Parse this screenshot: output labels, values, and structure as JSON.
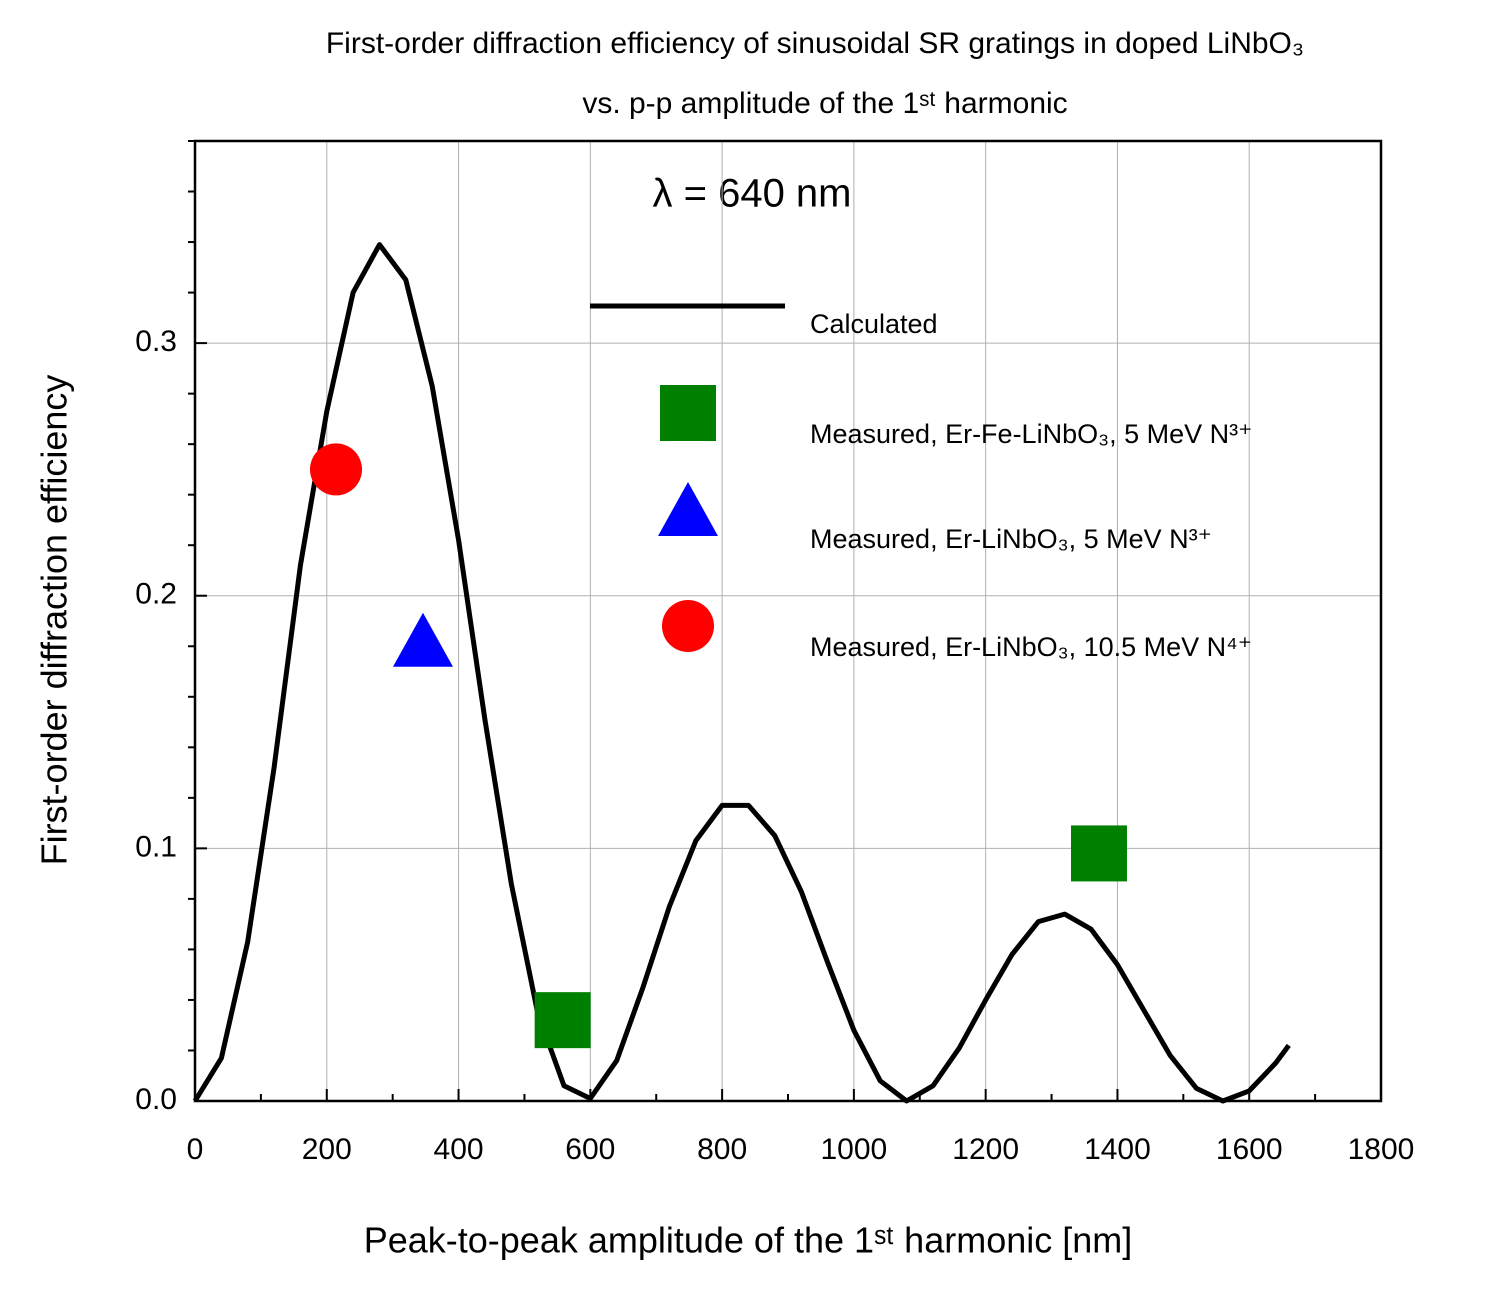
{
  "chart_data": {
    "type": "line",
    "title": "First-order diffraction efficiency of sinusoidal SR gratings in doped LiNbO₃",
    "subtitle": "vs. p-p amplitude of the 1ˢᵗ harmonic",
    "annotation": "λ = 640 nm",
    "x_label": "Peak-to-peak amplitude of the 1ˢᵗ harmonic [nm]",
    "y_label": "First-order diffraction efficiency",
    "xlim": [
      0,
      1800
    ],
    "ylim": [
      0,
      0.38
    ],
    "xticks": [
      0,
      200,
      400,
      600,
      800,
      1000,
      1200,
      1400,
      1600,
      1800
    ],
    "yticks": [
      {
        "value": 0,
        "label": "0.0"
      },
      0.1,
      0.2,
      0.3
    ],
    "minor_xticks": [
      100,
      300,
      500,
      700,
      900,
      1100,
      1300,
      1500,
      1700
    ],
    "minor_yticks": [
      0.02,
      0.04,
      0.06,
      0.08,
      0.12,
      0.14,
      0.16,
      0.18,
      0.22,
      0.24,
      0.26,
      0.28,
      0.32,
      0.34,
      0.36,
      0.38
    ],
    "grid": true,
    "series": [
      {
        "name": "Calculated",
        "type": "line",
        "color": "#000000",
        "x": [
          0,
          40,
          80,
          120,
          160,
          200,
          240,
          280,
          320,
          360,
          400,
          440,
          480,
          520,
          560,
          600,
          640,
          680,
          720,
          760,
          800,
          840,
          880,
          920,
          960,
          1000,
          1040,
          1080,
          1120,
          1160,
          1200,
          1240,
          1280,
          1320,
          1360,
          1400,
          1440,
          1480,
          1520,
          1560,
          1600,
          1640,
          1660
        ],
        "values": [
          0,
          0.017,
          0.063,
          0.132,
          0.212,
          0.273,
          0.32,
          0.339,
          0.325,
          0.283,
          0.222,
          0.151,
          0.086,
          0.035,
          0.006,
          0.001,
          0.016,
          0.045,
          0.077,
          0.103,
          0.117,
          0.117,
          0.105,
          0.083,
          0.055,
          0.028,
          0.008,
          0.0,
          0.006,
          0.021,
          0.04,
          0.058,
          0.071,
          0.074,
          0.068,
          0.054,
          0.036,
          0.018,
          0.005,
          0.0,
          0.004,
          0.015,
          0.022
        ]
      },
      {
        "name": "Measured, Er-Fe-LiNbO₃, 5 MeV N³⁺",
        "type": "scatter",
        "marker": "square",
        "color": "#008000",
        "x": [
          558,
          1372
        ],
        "values": [
          0.032,
          0.098
        ]
      },
      {
        "name": "Measured, Er-LiNbO₃, 5 MeV N³⁺",
        "type": "scatter",
        "marker": "triangle",
        "color": "#0000ff",
        "x": [
          346
        ],
        "values": [
          0.179
        ]
      },
      {
        "name": "Measured, Er-LiNbO₃, 10.5 MeV N⁴⁺",
        "type": "scatter",
        "marker": "circle",
        "color": "#ff0000",
        "x": [
          214
        ],
        "values": [
          0.25
        ]
      }
    ]
  }
}
